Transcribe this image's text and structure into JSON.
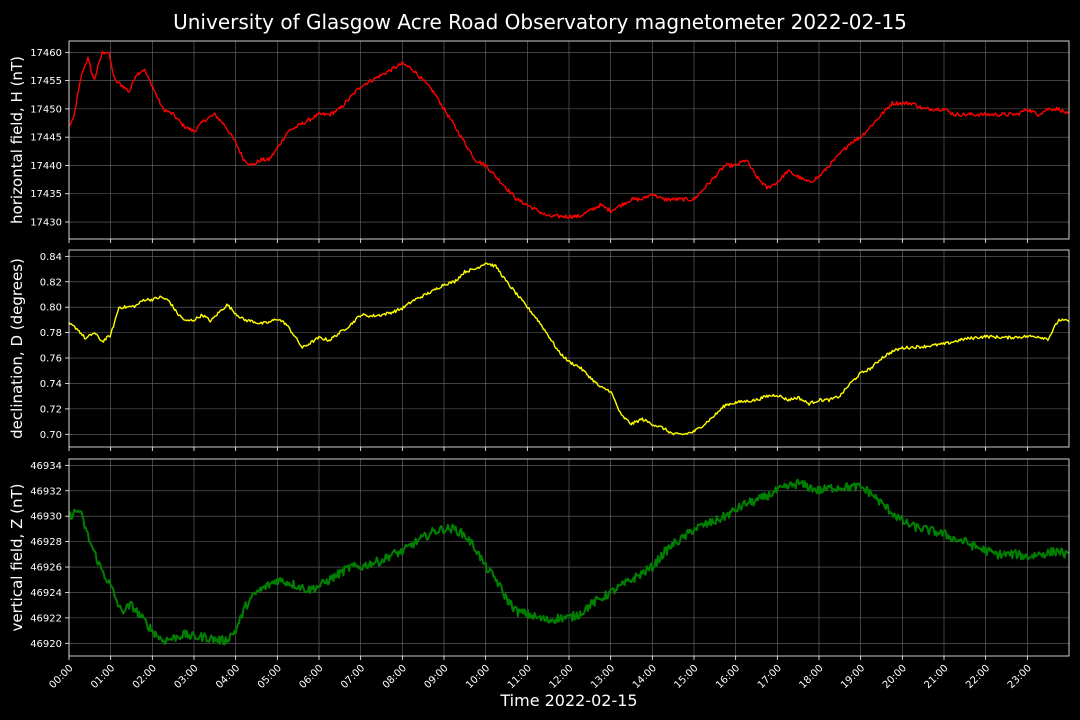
{
  "chart_data": {
    "title": "University of Glasgow Acre Road Observatory magnetometer 2022-02-15",
    "xlabel": "Time 2022-02-15",
    "x_range_hours": [
      0,
      24
    ],
    "x_ticks": [
      "00:00",
      "01:00",
      "02:00",
      "03:00",
      "04:00",
      "05:00",
      "06:00",
      "07:00",
      "08:00",
      "09:00",
      "10:00",
      "11:00",
      "12:00",
      "13:00",
      "14:00",
      "15:00",
      "16:00",
      "17:00",
      "18:00",
      "19:00",
      "20:00",
      "21:00",
      "22:00",
      "23:00"
    ],
    "grid": true,
    "background": "#000000",
    "panels": [
      {
        "type": "line",
        "ylabel": "horizontal field, H (nT)",
        "color": "#ff0000",
        "ylim": [
          17427,
          17462
        ],
        "yticks": [
          17430,
          17435,
          17440,
          17445,
          17450,
          17455,
          17460
        ],
        "ytick_labels": [
          "17430",
          "17435",
          "17440",
          "17445",
          "17450",
          "17455",
          "17460"
        ],
        "noise": 0.35,
        "hours": [
          0,
          0.1,
          0.3,
          0.45,
          0.6,
          0.8,
          0.95,
          1.1,
          1.3,
          1.45,
          1.6,
          1.8,
          2.0,
          2.25,
          2.5,
          2.75,
          3.0,
          3.25,
          3.5,
          3.75,
          4.0,
          4.2,
          4.4,
          4.6,
          4.8,
          5.0,
          5.25,
          5.5,
          5.75,
          6.0,
          6.25,
          6.5,
          6.75,
          7.0,
          7.25,
          7.5,
          7.75,
          8.0,
          8.25,
          8.5,
          8.75,
          9.0,
          9.25,
          9.5,
          9.75,
          10.0,
          10.25,
          10.5,
          10.75,
          11.0,
          11.25,
          11.5,
          11.75,
          12.0,
          12.25,
          12.5,
          12.75,
          13.0,
          13.25,
          13.5,
          13.75,
          14.0,
          14.25,
          14.5,
          14.75,
          15.0,
          15.25,
          15.5,
          15.75,
          16.0,
          16.25,
          16.5,
          16.75,
          17.0,
          17.25,
          17.5,
          17.75,
          18.0,
          18.25,
          18.5,
          18.75,
          19.0,
          19.25,
          19.5,
          19.75,
          20.0,
          20.25,
          20.5,
          20.75,
          21.0,
          21.25,
          21.5,
          21.75,
          22.0,
          22.25,
          22.5,
          22.75,
          23.0,
          23.25,
          23.5,
          23.75,
          24.0
        ],
        "values": [
          17447,
          17448,
          17456,
          17459,
          17455,
          17460,
          17460,
          17455,
          17454,
          17453,
          17456,
          17457,
          17454,
          17450,
          17449,
          17447,
          17446,
          17448,
          17449,
          17447,
          17444,
          17441,
          17440,
          17441,
          17441,
          17443,
          17446,
          17447,
          17448,
          17449,
          17449,
          17450,
          17452,
          17454,
          17455,
          17456,
          17457,
          17458,
          17457,
          17455,
          17453,
          17450,
          17447,
          17444,
          17441,
          17440,
          17438,
          17436,
          17434,
          17433,
          17432,
          17431,
          17431,
          17431,
          17431,
          17432,
          17433,
          17432,
          17433,
          17434,
          17434,
          17435,
          17434,
          17434,
          17434,
          17434,
          17436,
          17438,
          17440,
          17440,
          17441,
          17438,
          17436,
          17437,
          17439,
          17438,
          17437,
          17438,
          17440,
          17442,
          17444,
          17445,
          17447,
          17449,
          17451,
          17451,
          17451,
          17450,
          17450,
          17450,
          17449,
          17449,
          17449,
          17449,
          17449,
          17449,
          17449,
          17450,
          17449,
          17450,
          17450,
          17449
        ]
      },
      {
        "type": "line",
        "ylabel": "declination, D (degrees)",
        "color": "#ffff00",
        "ylim": [
          0.69,
          0.845
        ],
        "yticks": [
          0.7,
          0.72,
          0.74,
          0.76,
          0.78,
          0.8,
          0.82,
          0.84
        ],
        "ytick_labels": [
          "0.70",
          "0.72",
          "0.74",
          "0.76",
          "0.78",
          "0.80",
          "0.82",
          "0.84"
        ],
        "noise": 0.0012,
        "hours": [
          0,
          0.2,
          0.4,
          0.6,
          0.8,
          1.0,
          1.2,
          1.4,
          1.6,
          1.8,
          2.0,
          2.2,
          2.4,
          2.6,
          2.8,
          3.0,
          3.2,
          3.4,
          3.6,
          3.8,
          4.0,
          4.2,
          4.4,
          4.6,
          4.8,
          5.0,
          5.2,
          5.4,
          5.6,
          5.8,
          6.0,
          6.25,
          6.5,
          6.75,
          7.0,
          7.25,
          7.5,
          7.75,
          8.0,
          8.25,
          8.5,
          8.75,
          9.0,
          9.25,
          9.5,
          9.75,
          10.0,
          10.25,
          10.5,
          10.75,
          11.0,
          11.25,
          11.5,
          11.75,
          12.0,
          12.25,
          12.5,
          12.75,
          13.0,
          13.25,
          13.5,
          13.75,
          14.0,
          14.25,
          14.5,
          14.75,
          15.0,
          15.25,
          15.5,
          15.75,
          16.0,
          16.25,
          16.5,
          16.75,
          17.0,
          17.25,
          17.5,
          17.75,
          18.0,
          18.25,
          18.5,
          18.75,
          19.0,
          19.25,
          19.5,
          19.75,
          20.0,
          20.5,
          21.0,
          21.5,
          22.0,
          22.5,
          23.0,
          23.25,
          23.5,
          23.75,
          24.0
        ],
        "values": [
          0.787,
          0.783,
          0.775,
          0.78,
          0.773,
          0.778,
          0.8,
          0.8,
          0.801,
          0.806,
          0.806,
          0.808,
          0.805,
          0.795,
          0.789,
          0.79,
          0.794,
          0.789,
          0.796,
          0.802,
          0.795,
          0.79,
          0.789,
          0.787,
          0.788,
          0.791,
          0.787,
          0.778,
          0.768,
          0.772,
          0.776,
          0.774,
          0.78,
          0.786,
          0.794,
          0.793,
          0.794,
          0.796,
          0.799,
          0.805,
          0.809,
          0.813,
          0.818,
          0.82,
          0.828,
          0.83,
          0.835,
          0.832,
          0.82,
          0.81,
          0.8,
          0.79,
          0.778,
          0.765,
          0.757,
          0.753,
          0.745,
          0.737,
          0.734,
          0.715,
          0.708,
          0.712,
          0.708,
          0.705,
          0.7,
          0.7,
          0.702,
          0.708,
          0.715,
          0.723,
          0.725,
          0.726,
          0.727,
          0.73,
          0.731,
          0.727,
          0.729,
          0.724,
          0.727,
          0.727,
          0.73,
          0.74,
          0.748,
          0.752,
          0.76,
          0.765,
          0.768,
          0.769,
          0.771,
          0.775,
          0.777,
          0.776,
          0.777,
          0.777,
          0.775,
          0.79,
          0.789
        ]
      },
      {
        "type": "line",
        "ylabel": "vertical field, Z (nT)",
        "color": "#008000",
        "ylim": [
          46919,
          46934.5
        ],
        "yticks": [
          46920,
          46922,
          46924,
          46926,
          46928,
          46930,
          46932,
          46934
        ],
        "ytick_labels": [
          "46920",
          "46922",
          "46924",
          "46926",
          "46928",
          "46930",
          "46932",
          "46934"
        ],
        "noise": 0.35,
        "hours": [
          0,
          0.25,
          0.5,
          0.75,
          1.0,
          1.25,
          1.5,
          1.75,
          2.0,
          2.25,
          2.5,
          2.75,
          3.0,
          3.25,
          3.5,
          3.75,
          4.0,
          4.25,
          4.5,
          4.75,
          5.0,
          5.25,
          5.5,
          5.75,
          6.0,
          6.25,
          6.5,
          6.75,
          7.0,
          7.25,
          7.5,
          7.75,
          8.0,
          8.25,
          8.5,
          8.75,
          9.0,
          9.25,
          9.5,
          9.75,
          10.0,
          10.25,
          10.5,
          10.75,
          11.0,
          11.25,
          11.5,
          11.75,
          12.0,
          12.25,
          12.5,
          12.75,
          13.0,
          13.25,
          13.5,
          13.75,
          14.0,
          14.25,
          14.5,
          14.75,
          15.0,
          15.25,
          15.5,
          15.75,
          16.0,
          16.25,
          16.5,
          16.75,
          17.0,
          17.25,
          17.5,
          17.75,
          18.0,
          18.25,
          18.5,
          18.75,
          19.0,
          19.25,
          19.5,
          19.75,
          20.0,
          20.25,
          20.5,
          20.75,
          21.0,
          21.25,
          21.5,
          21.75,
          22.0,
          22.25,
          22.5,
          22.75,
          23.0,
          23.25,
          23.5,
          23.75,
          24.0
        ],
        "values": [
          46930,
          46930.5,
          46928,
          46926,
          46924.5,
          46922.5,
          46923,
          46922,
          46921,
          46920.2,
          46920.4,
          46920.7,
          46920.5,
          46920.5,
          46920.3,
          46920.2,
          46921,
          46923,
          46924,
          46924.5,
          46925,
          46924.8,
          46924.5,
          46924.2,
          46924.5,
          46925,
          46925.5,
          46926,
          46926,
          46926.3,
          46926.5,
          46927,
          46927.2,
          46927.8,
          46928.3,
          46928.8,
          46929,
          46929,
          46928.5,
          46927.5,
          46926,
          46925,
          46923.5,
          46922.5,
          46922.3,
          46922,
          46921.8,
          46922,
          46922,
          46922.3,
          46923,
          46923.5,
          46924,
          46924.5,
          46925,
          46925.5,
          46926,
          46927,
          46927.8,
          46928.3,
          46929,
          46929.3,
          46929.6,
          46930,
          46930.5,
          46931,
          46931.2,
          46931.6,
          46932,
          46932.3,
          46932.6,
          46932.3,
          46932,
          46932.2,
          46932.3,
          46932.3,
          46932.3,
          46931.8,
          46931,
          46930.3,
          46929.6,
          46929.2,
          46929,
          46928.8,
          46928.6,
          46928.2,
          46928,
          46927.6,
          46927.3,
          46927,
          46927,
          46927,
          46926.8,
          46927,
          46927.1,
          46927.3,
          46926.8
        ]
      }
    ]
  }
}
